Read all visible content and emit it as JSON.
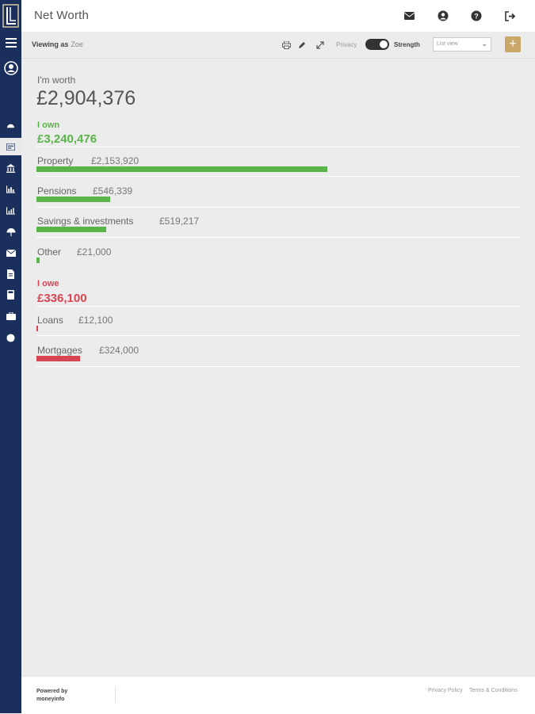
{
  "app": {
    "title": "Net Worth"
  },
  "toolbar": {
    "viewing_label": "Viewing as",
    "viewing_name": "Zoe",
    "privacy_label": "Privacy",
    "privacy_on": true,
    "strength_label": "Strength",
    "view_select": "List view",
    "add_label": "+"
  },
  "summary": {
    "worth_label": "I'm worth",
    "worth_value": "£2,904,376"
  },
  "own": {
    "title": "I own",
    "total": "£3,240,476",
    "items": [
      {
        "name": "Property",
        "amount": "£2,153,920",
        "value": 2153920
      },
      {
        "name": "Pensions",
        "amount": "£546,339",
        "value": 546339
      },
      {
        "name": "Savings & investments",
        "amount": "£519,217",
        "value": 519217
      },
      {
        "name": "Other",
        "amount": "£21,000",
        "value": 21000
      }
    ]
  },
  "owe": {
    "title": "I owe",
    "total": "£336,100",
    "items": [
      {
        "name": "Loans",
        "amount": "£12,100",
        "value": 12100
      },
      {
        "name": "Mortgages",
        "amount": "£324,000",
        "value": 324000
      }
    ]
  },
  "footer": {
    "powered_line1": "Powered by",
    "powered_line2": "moneyinfo",
    "privacy_link": "Privacy Policy",
    "terms_link": "Terms & Conditions"
  },
  "colors": {
    "sidebar": "#1b2f5c",
    "own": "#5ab44a",
    "owe": "#d94452",
    "accent": "#c9a86a"
  },
  "icons": {
    "sidebar": [
      "menu-icon",
      "profile-icon",
      "dashboard-icon",
      "net-worth-icon",
      "bank-icon",
      "chart-bar-icon",
      "chart-analytics-icon",
      "umbrella-icon",
      "mail-icon",
      "document-icon",
      "calculator-icon",
      "briefcase-icon",
      "globe-icon"
    ],
    "topbar": [
      "mail-icon",
      "user-icon",
      "help-icon",
      "logout-icon"
    ],
    "toolbar": [
      "print-icon",
      "edit-icon",
      "expand-icon"
    ]
  }
}
